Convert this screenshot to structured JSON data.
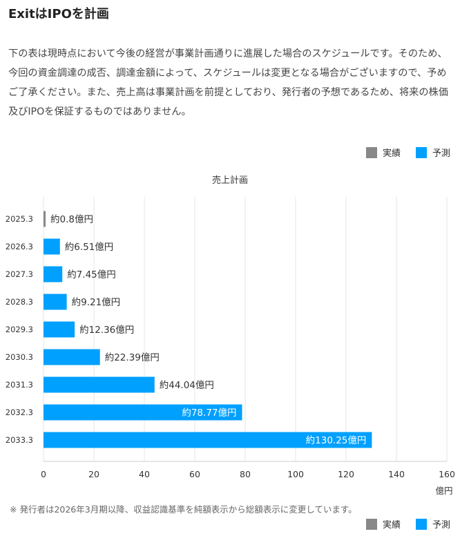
{
  "page": {
    "title": "ExitはIPOを計画",
    "intro": "下の表は現時点において今後の経営が事業計画通りに進展した場合のスケジュールです。そのため、今回の資金調達の成否、調達金額によって、スケジュールは変更となる場合がございますので、予めご了承ください。また、売上高は事業計画を前提としており、発行者の予想であるため、将来の株価及びIPOを保証するものではありません。",
    "note": "※ 発行者は2026年3月期以降、収益認識基準を純額表示から総額表示に変更しています。"
  },
  "legend": {
    "actual_label": "実績",
    "forecast_label": "予測",
    "placement": "top-right and bottom-right"
  },
  "colors": {
    "actual": "#888888",
    "forecast": "#00a0ff",
    "grid": "#e6e6e6",
    "axis_text": "#333333"
  },
  "chart_data": {
    "type": "bar",
    "orientation": "horizontal",
    "title": "売上計画",
    "xlabel": "",
    "ylabel": "",
    "unit_label": "億円",
    "xlim": [
      0,
      160
    ],
    "xticks": [
      0,
      20,
      40,
      60,
      80,
      100,
      120,
      140,
      160
    ],
    "grid": true,
    "categories": [
      "2025.3",
      "2026.3",
      "2027.3",
      "2028.3",
      "2029.3",
      "2030.3",
      "2031.3",
      "2032.3",
      "2033.3"
    ],
    "values": [
      0.8,
      6.51,
      7.45,
      9.21,
      12.36,
      22.39,
      44.04,
      78.77,
      130.25
    ],
    "kinds": [
      "actual",
      "forecast",
      "forecast",
      "forecast",
      "forecast",
      "forecast",
      "forecast",
      "forecast",
      "forecast"
    ],
    "data_labels": [
      "約0.8億円",
      "約6.51億円",
      "約7.45億円",
      "約9.21億円",
      "約12.36億円",
      "約22.39億円",
      "約44.04億円",
      "約78.77億円",
      "約130.25億円"
    ]
  }
}
